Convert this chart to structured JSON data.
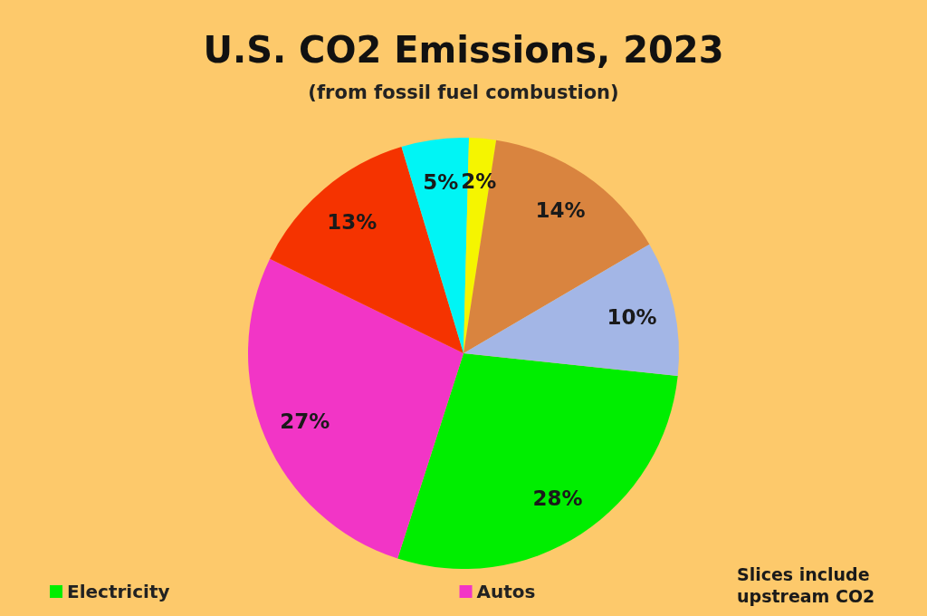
{
  "chart_data": {
    "type": "pie",
    "title": "U.S. CO2 Emissions, 2023",
    "subtitle": "(from fossil fuel combustion)",
    "categories": [
      "Electricity",
      "Autos",
      null,
      null,
      null,
      null,
      null
    ],
    "values": [
      28,
      27,
      13,
      5,
      2,
      14,
      10
    ],
    "colors": [
      "#00ee00",
      "#f235c6",
      "#f53300",
      "#00f5f5",
      "#f5f500",
      "#d9843f",
      "#a3b6e6"
    ],
    "value_labels": [
      "28%",
      "27%",
      "13%",
      "5%",
      "2%",
      "14%",
      "10%"
    ],
    "legend": "bottom",
    "annotations": [
      "Slices include upstream CO2"
    ]
  }
}
